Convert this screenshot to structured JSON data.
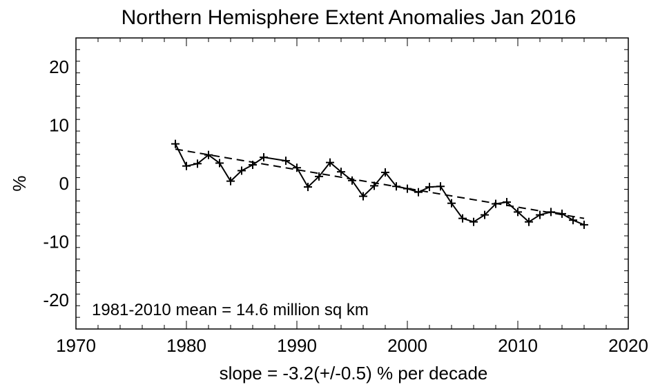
{
  "chart_data": {
    "type": "line",
    "title": "Northern Hemisphere Extent Anomalies Jan 2016",
    "xlabel": "slope =  -3.2(+/-0.5) % per decade",
    "ylabel": "%",
    "xlim": [
      1970,
      2020
    ],
    "ylim": [
      -25,
      25
    ],
    "xticks": [
      "1970",
      "1980",
      "1990",
      "2000",
      "2010",
      "2020"
    ],
    "yticks": [
      "20",
      "10",
      "0",
      "-10",
      "-20"
    ],
    "xtick_values": [
      1970,
      1980,
      1990,
      2000,
      2010,
      2020
    ],
    "ytick_values": [
      20,
      10,
      0,
      -10,
      -20
    ],
    "annotation": "1981-2010 mean =  14.6 million sq km",
    "series": [
      {
        "style": "solid line with plus markers",
        "x": [
          1979,
          1980,
          1981,
          1982,
          1983,
          1984,
          1985,
          1986,
          1987,
          1989,
          1990,
          1991,
          1992,
          1993,
          1994,
          1995,
          1996,
          1997,
          1998,
          1999,
          2000,
          2001,
          2002,
          2003,
          2004,
          2005,
          2006,
          2007,
          2008,
          2009,
          2010,
          2011,
          2012,
          2013,
          2014,
          2015,
          2016
        ],
        "y": [
          6.8,
          3.0,
          3.4,
          4.9,
          3.5,
          0.4,
          2.2,
          3.2,
          4.5,
          3.9,
          2.7,
          -0.6,
          1.2,
          3.6,
          2.0,
          0.5,
          -2.2,
          -0.4,
          1.9,
          -0.5,
          -0.9,
          -1.5,
          -0.6,
          -0.5,
          -3.4,
          -6.0,
          -6.6,
          -5.4,
          -3.5,
          -3.2,
          -4.9,
          -6.6,
          -5.4,
          -4.9,
          -5.2,
          -6.3,
          -7.1
        ]
      },
      {
        "style": "dashed trend line",
        "x": [
          1979,
          2016
        ],
        "y": [
          5.9,
          -6.0
        ]
      }
    ]
  }
}
